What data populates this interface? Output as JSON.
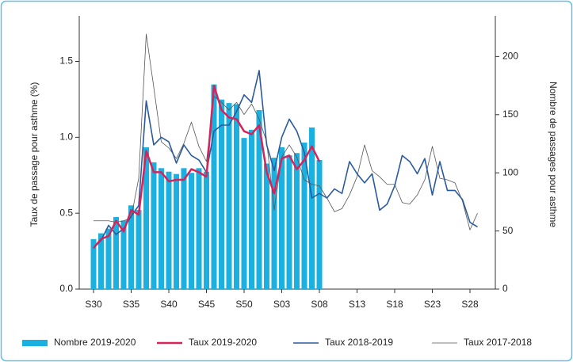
{
  "chart_data": {
    "type": "combo",
    "categories": [
      "S30",
      null,
      null,
      null,
      null,
      "S35",
      null,
      null,
      null,
      null,
      "S40",
      null,
      null,
      null,
      null,
      "S45",
      null,
      null,
      null,
      null,
      "S50",
      null,
      null,
      null,
      null,
      "S03",
      null,
      null,
      null,
      null,
      "S08",
      null,
      null,
      null,
      null,
      "S13",
      null,
      null,
      null,
      null,
      "S18",
      null,
      null,
      null,
      null,
      "S23",
      null,
      null,
      null,
      null,
      "S28",
      null
    ],
    "y_label": "Taux de passage pour asthme (%)",
    "y2_label": "Nombre de passages pour asthme",
    "ylim": [
      0,
      1.8
    ],
    "yticks": [
      {
        "value": 0,
        "label": "0.0"
      },
      0.5,
      {
        "value": 1,
        "label": "1.0"
      },
      1.5
    ],
    "y2lim": [
      0,
      235
    ],
    "y2ticks": [
      0,
      50,
      100,
      150,
      200
    ],
    "series": [
      {
        "name": "Nombre 2019-2020",
        "type": "bar",
        "axis": "y2",
        "color": "#1ab0e0",
        "values": [
          43,
          48,
          52,
          62,
          59,
          72,
          68,
          122,
          109,
          104,
          101,
          99,
          104,
          100,
          104,
          101,
          176,
          163,
          160,
          159,
          130,
          137,
          154,
          108,
          113,
          122,
          115,
          117,
          126,
          139,
          111,
          null,
          null,
          null,
          null,
          null,
          null,
          null,
          null,
          null,
          null,
          null,
          null,
          null,
          null,
          null,
          null,
          null,
          null,
          null,
          null,
          null
        ]
      },
      {
        "name": "Taux 2019-2020",
        "type": "line",
        "color": "#d6235a",
        "line_width": 2.5,
        "values": [
          0.27,
          0.33,
          0.35,
          0.45,
          0.38,
          0.52,
          0.49,
          0.91,
          0.77,
          0.77,
          0.71,
          0.72,
          0.72,
          0.79,
          0.77,
          0.74,
          1.34,
          1.18,
          1.13,
          1.12,
          1.04,
          1.02,
          1.08,
          0.77,
          0.63,
          0.86,
          0.88,
          0.79,
          0.85,
          0.94,
          0.84,
          null,
          null,
          null,
          null,
          null,
          null,
          null,
          null,
          null,
          null,
          null,
          null,
          null,
          null,
          null,
          null,
          null,
          null,
          null,
          null,
          null
        ]
      },
      {
        "name": "Taux 2018-2019",
        "type": "line",
        "color": "#2a5a9e",
        "line_width": 1.6,
        "values": [
          0.27,
          0.32,
          0.42,
          0.36,
          0.4,
          0.48,
          0.55,
          1.24,
          0.95,
          1.0,
          0.97,
          0.83,
          0.95,
          0.88,
          0.85,
          0.77,
          1.04,
          1.08,
          1.08,
          1.17,
          1.28,
          1.23,
          1.44,
          0.95,
          0.78,
          1.0,
          1.12,
          1.04,
          0.9,
          0.6,
          0.63,
          0.6,
          0.66,
          0.63,
          0.84,
          0.76,
          0.7,
          0.76,
          0.52,
          0.56,
          0.68,
          0.88,
          0.84,
          0.76,
          0.86,
          0.62,
          0.84,
          0.65,
          0.65,
          0.59,
          0.44,
          0.41
        ]
      },
      {
        "name": "Taux 2017-2018",
        "type": "line",
        "color": "#555555",
        "line_width": 0.8,
        "values": [
          0.45,
          0.45,
          0.45,
          0.44,
          0.45,
          0.47,
          0.73,
          1.68,
          1.33,
          0.97,
          0.93,
          0.86,
          0.96,
          1.1,
          0.94,
          0.84,
          1.27,
          1.23,
          1.18,
          1.23,
          1.15,
          1.22,
          1.12,
          0.97,
          0.52,
          0.87,
          0.95,
          0.87,
          0.72,
          0.69,
          0.68,
          0.6,
          0.51,
          0.53,
          0.62,
          0.74,
          0.95,
          0.78,
          0.74,
          0.69,
          0.69,
          0.57,
          0.56,
          0.62,
          0.72,
          0.94,
          0.73,
          0.72,
          0.7,
          0.58,
          0.39,
          0.5
        ]
      }
    ]
  }
}
